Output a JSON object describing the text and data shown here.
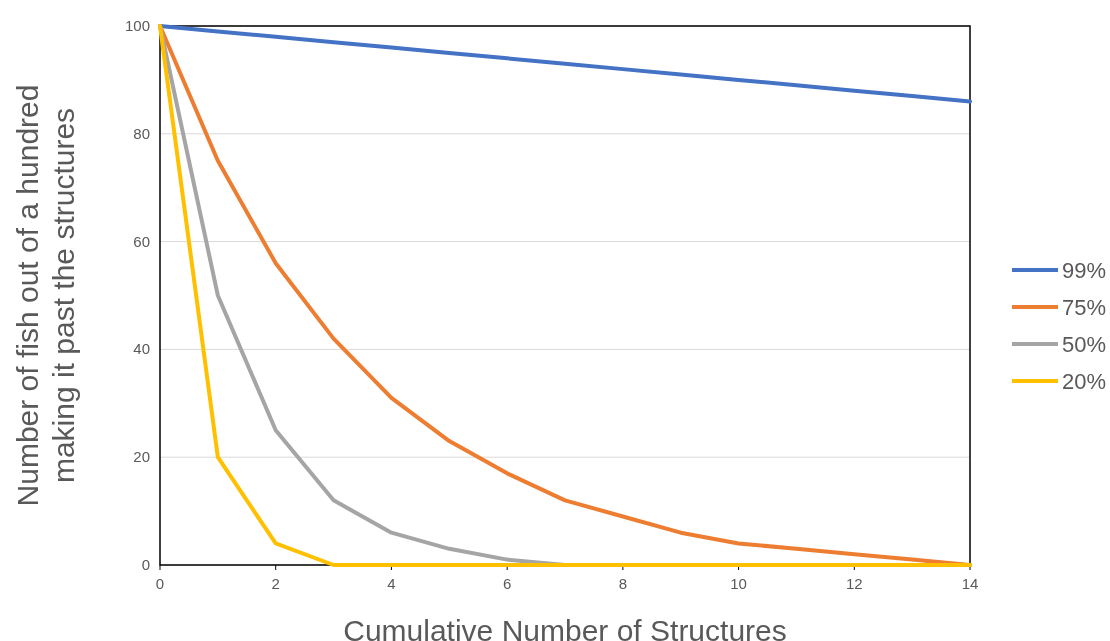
{
  "chart_data": {
    "type": "line",
    "xlabel": "Cumulative Number of Structures",
    "ylabel": "Number of fish out of a hundred\nmaking it past the structures",
    "x": [
      0,
      1,
      2,
      3,
      4,
      5,
      6,
      7,
      8,
      9,
      10,
      11,
      12,
      13,
      14
    ],
    "series": [
      {
        "name": "99%",
        "color": "#4472c4",
        "values": [
          100,
          99,
          98,
          97,
          96,
          95,
          94,
          93,
          92,
          91,
          90,
          89,
          88,
          87,
          86
        ]
      },
      {
        "name": "75%",
        "color": "#ed7d31",
        "values": [
          100,
          75,
          56,
          42,
          31,
          23,
          17,
          12,
          9,
          6,
          4,
          3,
          2,
          1,
          0
        ]
      },
      {
        "name": "50%",
        "color": "#a5a5a5",
        "values": [
          100,
          50,
          25,
          12,
          6,
          3,
          1,
          0,
          0,
          0,
          0,
          0,
          0,
          0,
          0
        ]
      },
      {
        "name": "20%",
        "color": "#ffc000",
        "values": [
          100,
          20,
          4,
          0,
          0,
          0,
          0,
          0,
          0,
          0,
          0,
          0,
          0,
          0,
          0
        ]
      }
    ],
    "xlim": [
      0,
      14
    ],
    "xticks": [
      0,
      2,
      4,
      6,
      8,
      10,
      12,
      14
    ],
    "ylim": [
      0,
      100
    ],
    "yticks": [
      0,
      20,
      40,
      60,
      80,
      100
    ],
    "grid": "y",
    "legend": "right",
    "marker": "none",
    "line_style": "solid"
  }
}
